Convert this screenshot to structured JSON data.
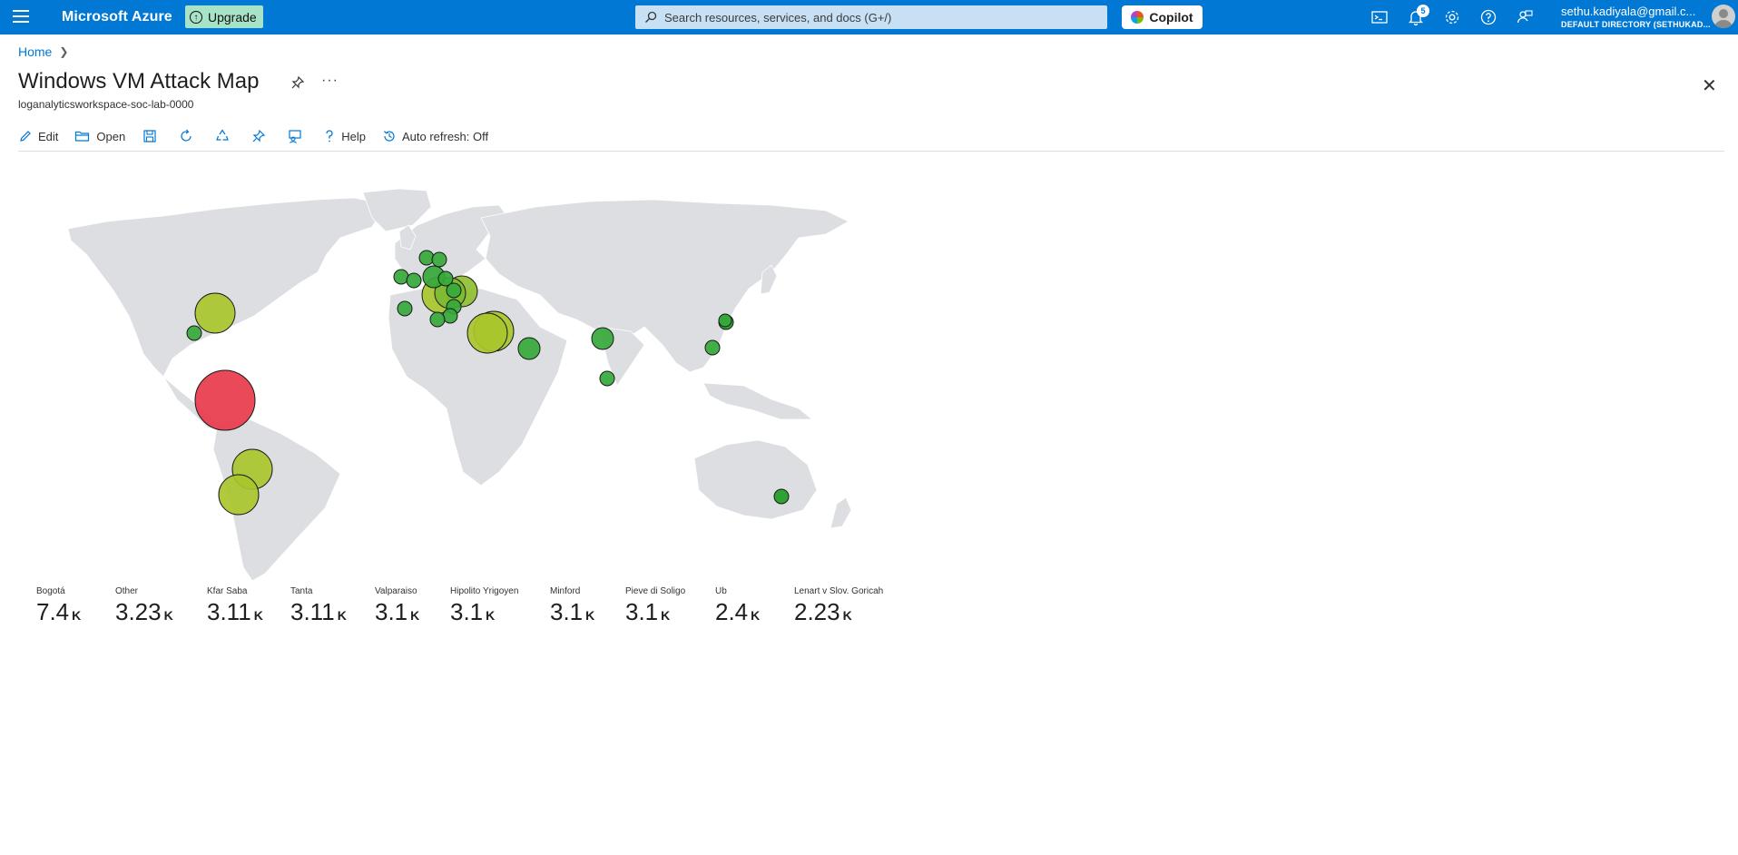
{
  "topbar": {
    "brand": "Microsoft Azure",
    "upgrade_label": "Upgrade",
    "search_placeholder": "Search resources, services, and docs (G+/)",
    "copilot_label": "Copilot",
    "notification_count": "5",
    "account_email": "sethu.kadiyala@gmail.c...",
    "account_directory": "DEFAULT DIRECTORY (SETHUKAD..."
  },
  "breadcrumb": {
    "home": "Home"
  },
  "page": {
    "title": "Windows VM Attack Map",
    "subtitle": "loganalyticsworkspace-soc-lab-0000"
  },
  "toolbar": {
    "edit": "Edit",
    "open": "Open",
    "help": "Help",
    "auto_refresh": "Auto refresh: Off"
  },
  "colors": {
    "accent": "#0078d4",
    "high": "#e8394c",
    "medium": "#a8c62c",
    "low": "#35a93a",
    "land": "#dcdee2"
  },
  "metrics": [
    {
      "label": "Bogotá",
      "value": "7.4",
      "unit": "K"
    },
    {
      "label": "Other",
      "value": "3.23",
      "unit": "K"
    },
    {
      "label": "Kfar Saba",
      "value": "3.11",
      "unit": "K"
    },
    {
      "label": "Tanta",
      "value": "3.11",
      "unit": "K"
    },
    {
      "label": "Valparaiso",
      "value": "3.1",
      "unit": "K"
    },
    {
      "label": "Hipolito Yrigoyen",
      "value": "3.1",
      "unit": "K"
    },
    {
      "label": "Minford",
      "value": "3.1",
      "unit": "K"
    },
    {
      "label": "Pieve di Soligo",
      "value": "3.1",
      "unit": "K"
    },
    {
      "label": "Ub",
      "value": "2.4",
      "unit": "K"
    },
    {
      "label": "Lenart v Slov. Goricah",
      "value": "2.23",
      "unit": "K"
    }
  ]
}
